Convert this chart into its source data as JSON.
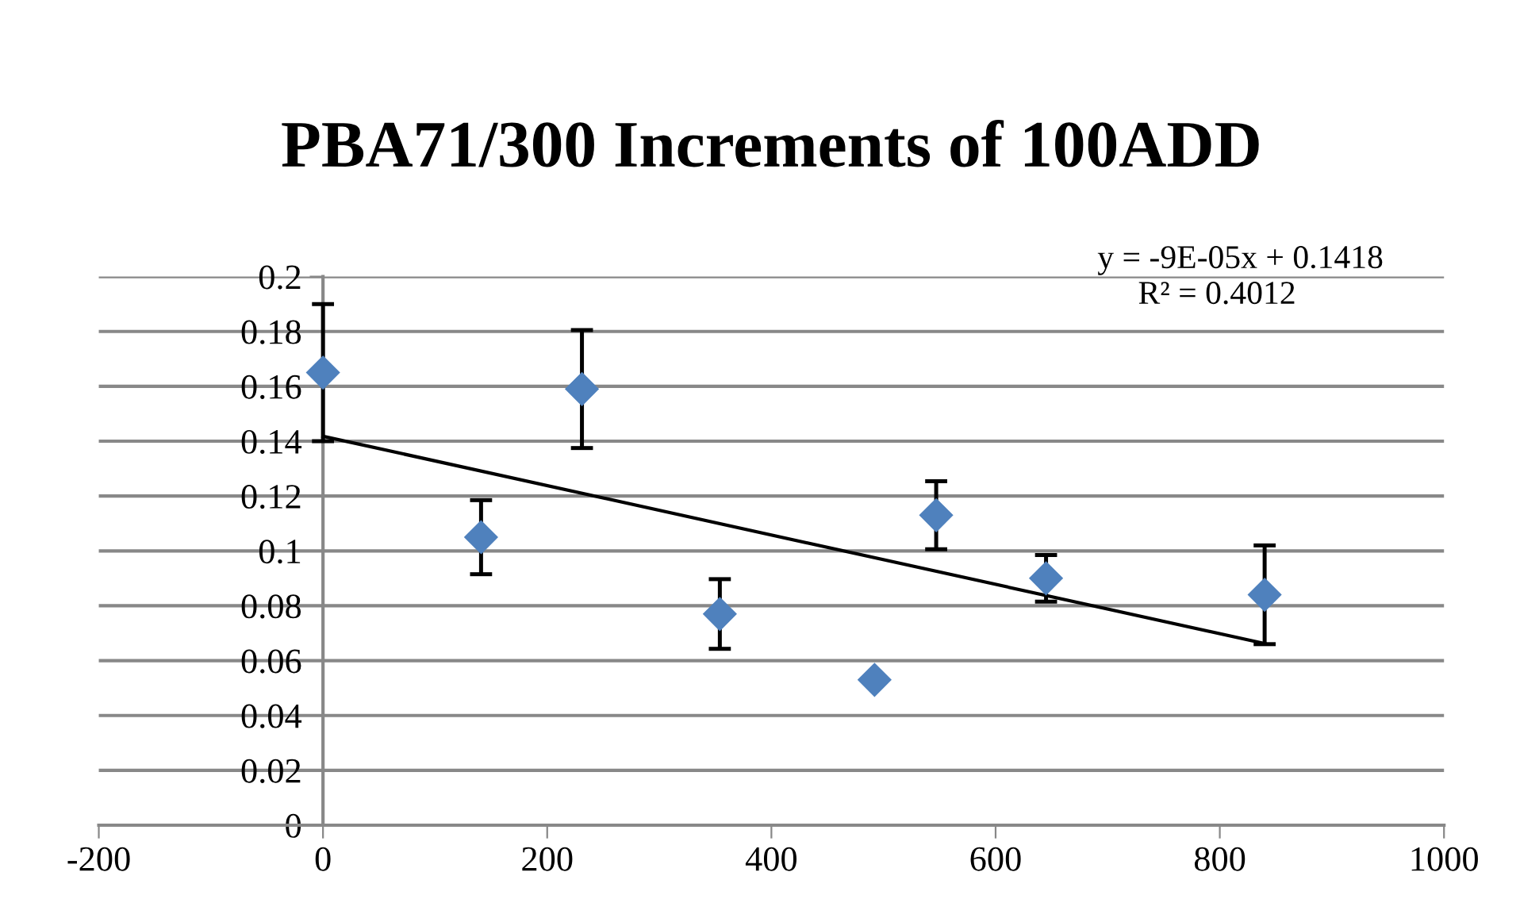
{
  "chart_data": {
    "type": "scatter",
    "title": "PBA71/300 Increments of 100ADD",
    "series": [
      {
        "color": "#4f81bd",
        "marker": "diamond",
        "x": [
          0,
          141,
          231,
          354,
          492,
          547,
          645,
          840
        ],
        "values": [
          0.165,
          0.105,
          0.159,
          0.077,
          0.053,
          0.113,
          0.09,
          0.084
        ],
        "errors": [
          0.025,
          0.0135,
          0.0215,
          0.0127,
          null,
          0.0124,
          0.0085,
          0.018
        ]
      },
      {
        "type": "line",
        "color": "#000000",
        "marker": "none",
        "x": [
          0,
          840
        ],
        "values": [
          0.1418,
          0.0662
        ]
      }
    ],
    "annotations": [
      "y = -9E-05x + 0.1418",
      "R² = 0.4012"
    ],
    "xlim": [
      -200,
      1000
    ],
    "xticks": [
      -200,
      0,
      200,
      400,
      600,
      800,
      1000
    ],
    "ylim": [
      0,
      0.2
    ],
    "yticks": [
      0,
      0.02,
      0.04,
      0.06,
      0.08,
      0.1,
      0.12,
      0.14,
      0.16,
      0.18,
      0.2
    ],
    "grid": "y"
  }
}
